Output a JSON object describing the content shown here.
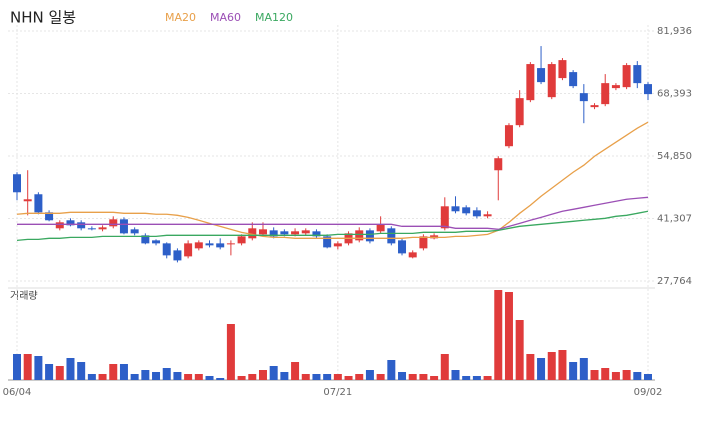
{
  "chart_data": {
    "type": "candlestick",
    "title": "NHN 일봉",
    "volume_label": "거래량",
    "up_color": "#e03b3b",
    "down_color": "#2d5fc8",
    "categories": [
      "06/04",
      null,
      null,
      null,
      null,
      null,
      null,
      null,
      null,
      null,
      null,
      null,
      null,
      null,
      null,
      null,
      null,
      null,
      null,
      null,
      null,
      null,
      null,
      null,
      null,
      null,
      null,
      null,
      null,
      null,
      "07/21",
      null,
      null,
      null,
      null,
      null,
      null,
      null,
      null,
      null,
      null,
      null,
      null,
      null,
      null,
      null,
      null,
      null,
      null,
      null,
      null,
      null,
      null,
      null,
      null,
      null,
      null,
      null,
      null,
      "09/02"
    ],
    "open": [
      50900,
      45040,
      46560,
      42650,
      39180,
      40920,
      40480,
      39180,
      38960,
      39610,
      41130,
      38960,
      37660,
      36570,
      35920,
      34400,
      33100,
      34840,
      35920,
      35920,
      35710,
      35920,
      37010,
      37880,
      38740,
      38530,
      37880,
      38090,
      38530,
      37440,
      35270,
      35920,
      36570,
      38740,
      38530,
      39180,
      36570,
      32880,
      34840,
      37010,
      39180,
      43950,
      43730,
      43080,
      41780,
      51760,
      56970,
      61530,
      66950,
      73900,
      67600,
      71730,
      73030,
      68470,
      65440,
      66090,
      69560,
      69770,
      74550,
      70430
    ],
    "high": [
      51330,
      51770,
      46990,
      43080,
      40920,
      41350,
      40920,
      39610,
      39830,
      41780,
      41570,
      39390,
      38090,
      36790,
      36140,
      34840,
      36570,
      36570,
      36570,
      37010,
      36570,
      37880,
      40480,
      40480,
      39390,
      38960,
      39180,
      39180,
      38960,
      37880,
      36360,
      38530,
      39390,
      39180,
      41780,
      39610,
      37010,
      34400,
      37880,
      38090,
      45900,
      46120,
      44170,
      43730,
      42870,
      54800,
      61960,
      69120,
      75200,
      78670,
      75200,
      76070,
      73460,
      70430,
      66300,
      72600,
      70640,
      74980,
      75420,
      70860
    ],
    "low": [
      45250,
      41990,
      42220,
      40700,
      38740,
      39610,
      38740,
      38740,
      38530,
      39180,
      37880,
      37660,
      35710,
      35490,
      32670,
      31800,
      32670,
      34400,
      35050,
      34620,
      33320,
      35490,
      36570,
      37440,
      37010,
      37440,
      37440,
      37660,
      37010,
      34840,
      34620,
      35490,
      36140,
      35920,
      38090,
      35490,
      33320,
      32670,
      34400,
      36790,
      38740,
      42430,
      41990,
      41350,
      41350,
      45250,
      56540,
      61090,
      66520,
      70430,
      67170,
      71290,
      69560,
      61960,
      65000,
      65650,
      69120,
      69340,
      69560,
      66950
    ],
    "close": [
      46990,
      45470,
      42650,
      40920,
      40480,
      39830,
      39180,
      38960,
      39390,
      41130,
      38090,
      38090,
      35920,
      35920,
      33320,
      32230,
      35920,
      36140,
      35490,
      35050,
      35920,
      37440,
      39180,
      38960,
      37440,
      37880,
      38530,
      38740,
      37440,
      35050,
      35920,
      38090,
      38740,
      36360,
      40050,
      35920,
      33750,
      33970,
      37440,
      37660,
      43950,
      42870,
      42430,
      41780,
      42220,
      54370,
      61530,
      67390,
      74770,
      70860,
      74770,
      75630,
      69990,
      66740,
      65870,
      70640,
      70210,
      74550,
      70640,
      68260
    ],
    "volume": [
      26,
      26,
      24,
      16,
      14,
      22,
      18,
      6,
      6,
      16,
      16,
      6,
      10,
      8,
      12,
      8,
      6,
      6,
      4,
      2,
      56,
      4,
      6,
      10,
      14,
      8,
      18,
      6,
      6,
      6,
      6,
      4,
      6,
      10,
      6,
      20,
      8,
      6,
      6,
      4,
      26,
      10,
      4,
      4,
      4,
      90,
      88,
      60,
      26,
      22,
      28,
      30,
      18,
      22,
      10,
      12,
      8,
      10,
      8,
      6
    ],
    "volume_ylim": [
      0,
      90
    ],
    "series": [
      {
        "name": "MA20",
        "color": "#e8a04a",
        "values": [
          42220,
          42430,
          42430,
          42430,
          42430,
          42650,
          42650,
          42650,
          42650,
          42650,
          42430,
          42430,
          42430,
          42220,
          42220,
          42000,
          41560,
          40920,
          40260,
          39610,
          38960,
          38310,
          37870,
          37440,
          37220,
          37220,
          37010,
          37010,
          37010,
          37010,
          37010,
          37010,
          37010,
          37010,
          37010,
          37010,
          37010,
          37220,
          37220,
          37220,
          37220,
          37440,
          37440,
          37650,
          37870,
          38740,
          40480,
          42430,
          44170,
          46120,
          47860,
          49600,
          51330,
          52850,
          54800,
          56320,
          57840,
          59360,
          60880,
          62180
        ]
      },
      {
        "name": "MA60",
        "color": "#9b4fb5",
        "values": [
          40050,
          40050,
          40050,
          40050,
          40050,
          40050,
          40050,
          40050,
          40050,
          40050,
          40050,
          40050,
          40050,
          40050,
          40050,
          40050,
          40050,
          40050,
          40050,
          40050,
          40050,
          40050,
          40050,
          40050,
          40050,
          40050,
          40050,
          40050,
          40050,
          40050,
          40050,
          40050,
          40050,
          40050,
          40050,
          40050,
          39610,
          39610,
          39610,
          39610,
          39610,
          39180,
          39180,
          39180,
          39180,
          38960,
          39610,
          40260,
          40920,
          41560,
          42220,
          42870,
          43300,
          43730,
          44170,
          44610,
          45040,
          45480,
          45690,
          45900
        ]
      },
      {
        "name": "MA120",
        "color": "#3aa860",
        "values": [
          36570,
          36790,
          36790,
          37010,
          37010,
          37220,
          37220,
          37220,
          37440,
          37440,
          37440,
          37440,
          37440,
          37440,
          37660,
          37660,
          37660,
          37660,
          37660,
          37660,
          37660,
          37660,
          37660,
          37660,
          37660,
          37660,
          37660,
          37660,
          37660,
          37660,
          37870,
          37870,
          37870,
          37870,
          38090,
          38090,
          38090,
          38090,
          38310,
          38310,
          38310,
          38310,
          38530,
          38530,
          38530,
          38740,
          39180,
          39610,
          39830,
          40050,
          40260,
          40480,
          40700,
          40920,
          41130,
          41350,
          41780,
          42000,
          42430,
          42870
        ]
      }
    ],
    "ylim": [
      27764,
      81936
    ],
    "yticks": [
      {
        "value": 27764,
        "label": "27,764"
      },
      {
        "value": 41307,
        "label": "41,307"
      },
      {
        "value": 54850,
        "label": "54,850"
      },
      {
        "value": 68393,
        "label": "68,393"
      },
      {
        "value": 81936,
        "label": "81,936"
      }
    ],
    "grid": true
  }
}
